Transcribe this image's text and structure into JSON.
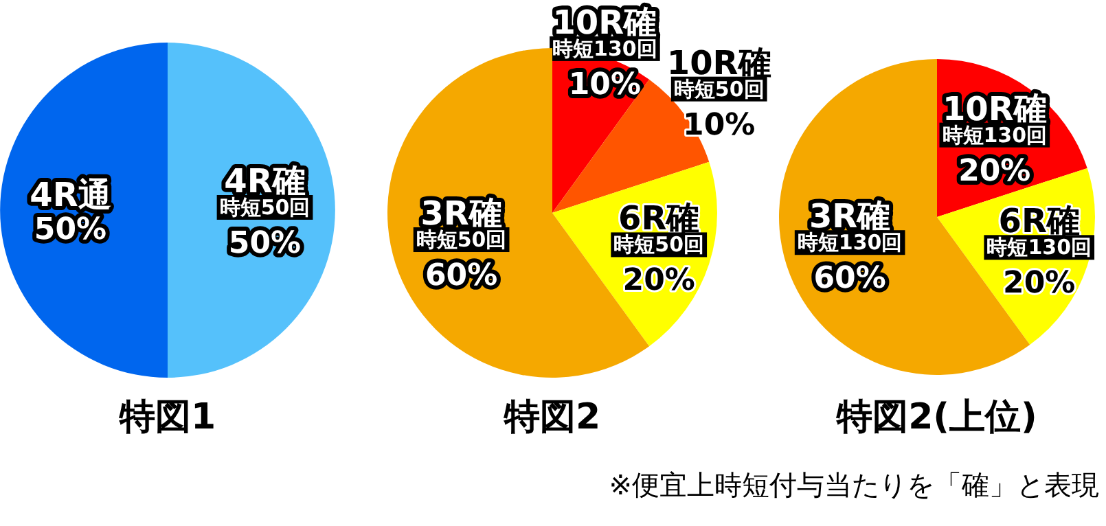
{
  "chart_data": [
    {
      "type": "pie",
      "title": "特図1",
      "categories": [
        "4R確",
        "4R通"
      ],
      "values": [
        50,
        50
      ],
      "colors": [
        "#55c1fb",
        "#0066ee"
      ],
      "value_labels": [
        "50%",
        "50%"
      ],
      "annotations": [
        {
          "text": "時短50回",
          "x": "4R確"
        }
      ]
    },
    {
      "type": "pie",
      "title": "特図2",
      "categories": [
        "10R確",
        "10R確",
        "6R確",
        "3R確"
      ],
      "values": [
        10,
        10,
        20,
        60
      ],
      "colors": [
        "#ff0000",
        "#ff5500",
        "#ffff00",
        "#f5a800"
      ],
      "value_labels": [
        "10%",
        "10%",
        "20%",
        "60%"
      ],
      "annotations": [
        {
          "text": "時短130回",
          "x": "10R確"
        },
        {
          "text": "時短50回",
          "x": "10R確"
        },
        {
          "text": "時短50回",
          "x": "6R確"
        },
        {
          "text": "時短50回",
          "x": "3R確"
        }
      ]
    },
    {
      "type": "pie",
      "title": "特図2(上位)",
      "categories": [
        "10R確",
        "6R確",
        "3R確"
      ],
      "values": [
        20,
        20,
        60
      ],
      "colors": [
        "#ff0000",
        "#ffff00",
        "#f5a800"
      ],
      "value_labels": [
        "20%",
        "20%",
        "60%"
      ],
      "annotations": [
        {
          "text": "時短130回",
          "x": "10R確"
        },
        {
          "text": "時短130回",
          "x": "6R確"
        },
        {
          "text": "時短130回",
          "x": "3R確"
        },
        "※便宜上時短付与当たりを「確」と表現"
      ]
    }
  ]
}
